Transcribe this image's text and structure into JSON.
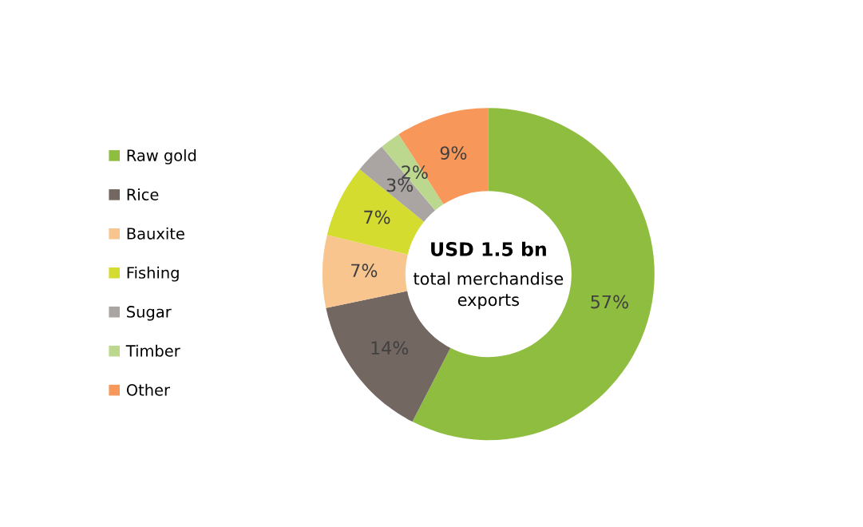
{
  "chart_data": {
    "type": "donut",
    "categories": [
      "Raw gold",
      "Rice",
      "Bauxite",
      "Fishing",
      "Sugar",
      "Timber",
      "Other"
    ],
    "values": [
      57,
      14,
      7,
      7,
      3,
      2,
      9
    ],
    "colors": [
      "#8fbd3f",
      "#736762",
      "#f9c58f",
      "#d4dc2f",
      "#aaa5a2",
      "#bcd88f",
      "#f7975a"
    ],
    "data_labels": true,
    "value_labels": [
      "57%",
      "14%",
      "7%",
      "7%",
      "3%",
      "2%",
      "9%"
    ],
    "annotations": [
      "USD 1.5 bn",
      "total merchandise\nexports"
    ],
    "legend": "left"
  }
}
